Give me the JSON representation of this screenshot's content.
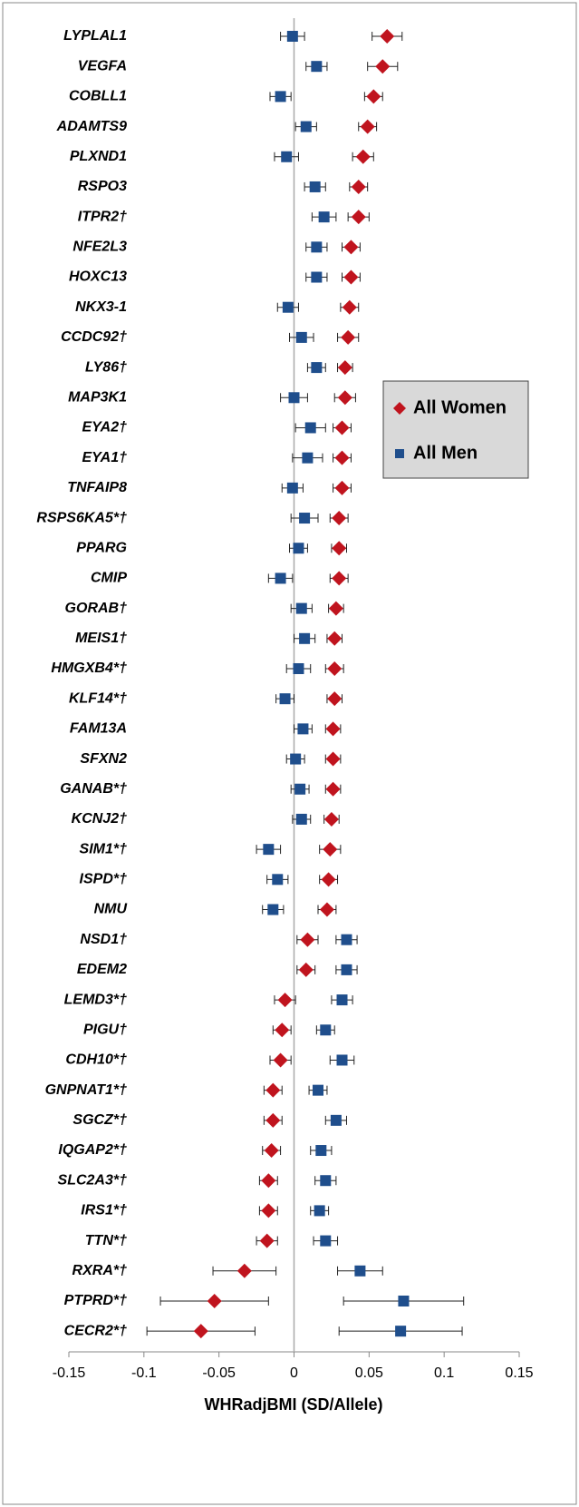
{
  "chart_data": {
    "type": "forest",
    "xlabel": "WHRadjBMI (SD/Allele)",
    "categories": [
      "LYPLAL1",
      "VEGFA",
      "COBLL1",
      "ADAMTS9",
      "PLXND1",
      "RSPO3",
      "ITPR2†",
      "NFE2L3",
      "HOXC13",
      "NKX3-1",
      "CCDC92†",
      "LY86†",
      "MAP3K1",
      "EYA2†",
      "EYA1†",
      "TNFAIP8",
      "RSPS6KA5*†",
      "PPARG",
      "CMIP",
      "GORAB†",
      "MEIS1†",
      "HMGXB4*†",
      "KLF14*†",
      "FAM13A",
      "SFXN2",
      "GANAB*†",
      "KCNJ2†",
      "SIM1*†",
      "ISPD*†",
      "NMU",
      "NSD1†",
      "EDEM2",
      "LEMD3*†",
      "PIGU†",
      "CDH10*†",
      "GNPNAT1*†",
      "SGCZ*†",
      "IQGAP2*†",
      "SLC2A3*†",
      "IRS1*†",
      "TTN*†",
      "RXRA*†",
      "PTPRD*†",
      "CECR2*†"
    ],
    "series": [
      {
        "name": "All Women",
        "color": "#c0141e",
        "marker": "diamond",
        "values": [
          0.062,
          0.059,
          0.053,
          0.049,
          0.046,
          0.043,
          0.043,
          0.038,
          0.038,
          0.037,
          0.036,
          0.034,
          0.034,
          0.032,
          0.032,
          0.032,
          0.03,
          0.03,
          0.03,
          0.028,
          0.027,
          0.027,
          0.027,
          0.026,
          0.026,
          0.026,
          0.025,
          0.024,
          0.023,
          0.022,
          0.009,
          0.008,
          -0.006,
          -0.008,
          -0.009,
          -0.014,
          -0.014,
          -0.015,
          -0.017,
          -0.017,
          -0.018,
          -0.033,
          -0.053,
          -0.062
        ],
        "errors": [
          0.01,
          0.01,
          0.006,
          0.006,
          0.007,
          0.006,
          0.007,
          0.006,
          0.006,
          0.006,
          0.007,
          0.005,
          0.007,
          0.006,
          0.006,
          0.006,
          0.006,
          0.005,
          0.006,
          0.005,
          0.005,
          0.006,
          0.005,
          0.005,
          0.005,
          0.005,
          0.005,
          0.007,
          0.006,
          0.006,
          0.007,
          0.006,
          0.007,
          0.006,
          0.007,
          0.006,
          0.006,
          0.006,
          0.006,
          0.006,
          0.007,
          0.021,
          0.036,
          0.036
        ]
      },
      {
        "name": "All Men",
        "color": "#1f4e8c",
        "marker": "square",
        "values": [
          -0.001,
          0.015,
          -0.009,
          0.008,
          -0.005,
          0.014,
          0.02,
          0.015,
          0.015,
          -0.004,
          0.005,
          0.015,
          0.0,
          0.011,
          0.009,
          -0.001,
          0.007,
          0.003,
          -0.009,
          0.005,
          0.007,
          0.003,
          -0.006,
          0.006,
          0.001,
          0.004,
          0.005,
          -0.017,
          -0.011,
          -0.014,
          0.035,
          0.035,
          0.032,
          0.021,
          0.032,
          0.016,
          0.028,
          0.018,
          0.021,
          0.017,
          0.021,
          0.044,
          0.073,
          0.071
        ],
        "errors": [
          0.008,
          0.007,
          0.007,
          0.007,
          0.008,
          0.007,
          0.008,
          0.007,
          0.007,
          0.007,
          0.008,
          0.006,
          0.009,
          0.01,
          0.01,
          0.007,
          0.009,
          0.006,
          0.008,
          0.007,
          0.007,
          0.008,
          0.006,
          0.006,
          0.006,
          0.006,
          0.006,
          0.008,
          0.007,
          0.007,
          0.007,
          0.007,
          0.007,
          0.006,
          0.008,
          0.006,
          0.007,
          0.007,
          0.007,
          0.006,
          0.008,
          0.015,
          0.04,
          0.041
        ]
      }
    ],
    "xlim": [
      -0.15,
      0.15
    ],
    "xticks": [
      -0.15,
      -0.1,
      -0.05,
      0,
      0.05,
      0.1,
      0.15
    ],
    "zero_line": true,
    "legend": "right"
  }
}
